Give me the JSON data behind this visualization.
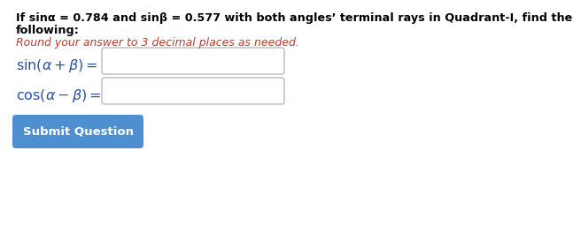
{
  "bg_color": "#ffffff",
  "title_line1_plain": "If sin",
  "title_line1_alpha": "α",
  "title_line1_mid": " = 0.784 and sin",
  "title_line1_beta": "β",
  "title_line1_end": " = 0.577 with both angles’ terminal rays in Quadrant-I, find the",
  "title_line2": "following:",
  "subtitle": "Round your answer to 3 decimal places as needed.",
  "label1": "$\\sin(\\alpha + \\beta) =$",
  "label2": "$\\cos(\\alpha - \\beta) =$",
  "button_text": "Submit Question",
  "button_color": "#4d8fd1",
  "button_text_color": "#ffffff",
  "input_box_color": "#ffffff",
  "input_box_border": "#bbbbbb",
  "title_color": "#000000",
  "subtitle_color": "#c0392b",
  "label_color": "#2c4fa3",
  "title_fontsize": 9.2,
  "subtitle_fontsize": 9.0,
  "label_fontsize": 11.5,
  "button_fontsize": 9.5
}
